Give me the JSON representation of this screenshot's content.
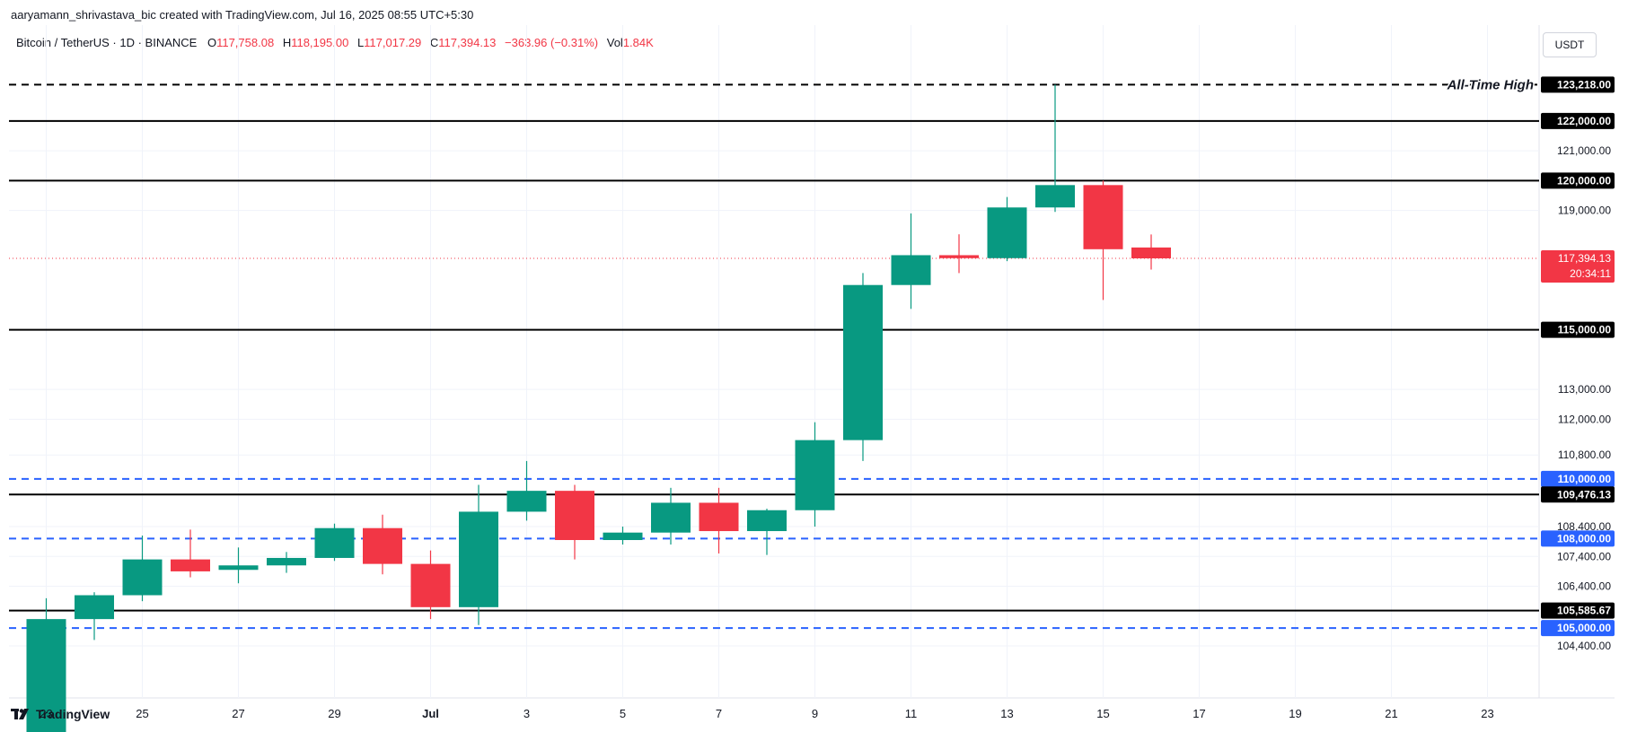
{
  "attribution": "aaryamann_shrivastava_bic created with TradingView.com, Jul 16, 2025 08:55 UTC+5:30",
  "legend": {
    "symbol": "Bitcoin / TetherUS · 1D · BINANCE",
    "open_label": "O",
    "open": "117,758.08",
    "high_label": "H",
    "high": "118,195.00",
    "low_label": "L",
    "low": "117,017.29",
    "close_label": "C",
    "close": "117,394.13",
    "change": "−363.96 (−0.31%)",
    "vol_label": "Vol",
    "vol": "1.84K"
  },
  "currency_button": "USDT",
  "branding": "TradingView",
  "colors": {
    "up": "#089981",
    "down": "#f23645",
    "support_line": "#000000",
    "dashed_line": "#2962ff",
    "current_price": "#f23645"
  },
  "chart_data": {
    "type": "candlestick",
    "ylim": [
      103800,
      123950
    ],
    "y_ticks": [
      104400,
      106400,
      107400,
      108400,
      110800,
      112000,
      113000,
      119000,
      121000
    ],
    "x_ticks": [
      "23",
      "25",
      "27",
      "29",
      "Jul",
      "3",
      "5",
      "7",
      "9",
      "11",
      "13",
      "15",
      "17",
      "19",
      "21",
      "23"
    ],
    "candles": [
      {
        "date": "2025-06-23",
        "o": 101500,
        "h": 106000,
        "l": 100900,
        "c": 105300
      },
      {
        "date": "2025-06-24",
        "o": 105300,
        "h": 106200,
        "l": 104600,
        "c": 106100
      },
      {
        "date": "2025-06-25",
        "o": 106100,
        "h": 108100,
        "l": 105900,
        "c": 107300
      },
      {
        "date": "2025-06-26",
        "o": 107300,
        "h": 108300,
        "l": 106700,
        "c": 106900
      },
      {
        "date": "2025-06-27",
        "o": 106950,
        "h": 107700,
        "l": 106500,
        "c": 107100
      },
      {
        "date": "2025-06-28",
        "o": 107100,
        "h": 107550,
        "l": 106850,
        "c": 107350
      },
      {
        "date": "2025-06-29",
        "o": 107350,
        "h": 108500,
        "l": 107250,
        "c": 108350
      },
      {
        "date": "2025-06-30",
        "o": 108350,
        "h": 108800,
        "l": 106800,
        "c": 107150
      },
      {
        "date": "2025-07-01",
        "o": 107150,
        "h": 107600,
        "l": 105300,
        "c": 105700
      },
      {
        "date": "2025-07-02",
        "o": 105700,
        "h": 109800,
        "l": 105100,
        "c": 108900
      },
      {
        "date": "2025-07-03",
        "o": 108900,
        "h": 110600,
        "l": 108600,
        "c": 109600
      },
      {
        "date": "2025-07-04",
        "o": 109600,
        "h": 109800,
        "l": 107300,
        "c": 107950
      },
      {
        "date": "2025-07-05",
        "o": 107950,
        "h": 108400,
        "l": 107800,
        "c": 108200
      },
      {
        "date": "2025-07-06",
        "o": 108200,
        "h": 109700,
        "l": 107800,
        "c": 109200
      },
      {
        "date": "2025-07-07",
        "o": 109200,
        "h": 109700,
        "l": 107500,
        "c": 108250
      },
      {
        "date": "2025-07-08",
        "o": 108250,
        "h": 109000,
        "l": 107450,
        "c": 108950
      },
      {
        "date": "2025-07-09",
        "o": 108950,
        "h": 111900,
        "l": 108400,
        "c": 111300
      },
      {
        "date": "2025-07-10",
        "o": 111300,
        "h": 116900,
        "l": 110600,
        "c": 116500
      },
      {
        "date": "2025-07-11",
        "o": 116500,
        "h": 118900,
        "l": 115700,
        "c": 117500
      },
      {
        "date": "2025-07-12",
        "o": 117500,
        "h": 118200,
        "l": 116900,
        "c": 117400
      },
      {
        "date": "2025-07-13",
        "o": 117400,
        "h": 119450,
        "l": 117300,
        "c": 119100
      },
      {
        "date": "2025-07-14",
        "o": 119100,
        "h": 123218,
        "l": 118950,
        "c": 119850
      },
      {
        "date": "2025-07-15",
        "o": 119850,
        "h": 120000,
        "l": 116000,
        "c": 117700
      },
      {
        "date": "2025-07-16",
        "o": 117758.08,
        "h": 118195,
        "l": 117017.29,
        "c": 117394.13
      }
    ],
    "horizontal_levels": [
      {
        "value": 123218,
        "style": "dashed-black",
        "label": "123,218.00",
        "annotation": "All-Time High"
      },
      {
        "value": 122000,
        "style": "solid",
        "label": "122,000.00"
      },
      {
        "value": 120000,
        "style": "solid",
        "label": "120,000.00"
      },
      {
        "value": 115000,
        "style": "solid",
        "label": "115,000.00"
      },
      {
        "value": 110000,
        "style": "dashed-blue",
        "label": "110,000.00"
      },
      {
        "value": 109476.13,
        "style": "solid",
        "label": "109,476.13"
      },
      {
        "value": 108000,
        "style": "dashed-blue",
        "label": "108,000.00"
      },
      {
        "value": 105585.67,
        "style": "solid",
        "label": "105,585.67"
      },
      {
        "value": 105000,
        "style": "dashed-blue",
        "label": "105,000.00"
      }
    ],
    "current_price": {
      "value": 117394.13,
      "label": "117,394.13",
      "countdown": "20:34:11"
    }
  }
}
